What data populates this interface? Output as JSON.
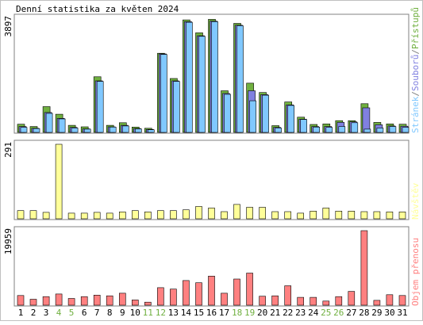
{
  "chart_data": [
    {
      "type": "bar",
      "title": "Denní statistika za květen 2024",
      "ymax_label": "3897",
      "ylim": [
        0,
        3897
      ],
      "legend": [
        "Přístupů",
        "Souborů",
        "Stránek"
      ],
      "legend_separator": "/",
      "legend_placement": "right (vertical)",
      "categories": [
        "1",
        "2",
        "3",
        "4",
        "5",
        "6",
        "7",
        "8",
        "9",
        "10",
        "11",
        "12",
        "13",
        "14",
        "15",
        "16",
        "17",
        "18",
        "19",
        "20",
        "21",
        "22",
        "23",
        "24",
        "25",
        "26",
        "27",
        "28",
        "29",
        "30",
        "31"
      ],
      "series": [
        {
          "name": "Přístupů",
          "color": "#70b040",
          "values": [
            280,
            200,
            880,
            620,
            240,
            190,
            1900,
            240,
            330,
            180,
            140,
            2700,
            1840,
            3840,
            3400,
            3860,
            1420,
            3720,
            1680,
            1360,
            230,
            1040,
            520,
            270,
            290,
            400,
            400,
            980,
            340,
            290,
            280
          ]
        },
        {
          "name": "Souborů",
          "color": "#8080e0",
          "values": [
            200,
            140,
            680,
            480,
            170,
            120,
            1760,
            190,
            240,
            130,
            100,
            2680,
            1760,
            3780,
            3300,
            3800,
            1330,
            3660,
            1420,
            1290,
            170,
            940,
            450,
            200,
            200,
            340,
            360,
            840,
            260,
            220,
            210
          ]
        },
        {
          "name": "Stránek",
          "color": "#80c8ff",
          "values": [
            170,
            130,
            650,
            460,
            150,
            110,
            1740,
            180,
            220,
            120,
            90,
            2660,
            1740,
            3760,
            3280,
            3780,
            1300,
            3640,
            1080,
            1270,
            150,
            920,
            440,
            180,
            170,
            200,
            330,
            110,
            150,
            200,
            170
          ]
        }
      ]
    },
    {
      "type": "bar",
      "ymax_label": "291",
      "ylim": [
        0,
        291
      ],
      "legend": [
        "Návštěv"
      ],
      "categories": [
        "1",
        "2",
        "3",
        "4",
        "5",
        "6",
        "7",
        "8",
        "9",
        "10",
        "11",
        "12",
        "13",
        "14",
        "15",
        "16",
        "17",
        "18",
        "19",
        "20",
        "21",
        "22",
        "23",
        "24",
        "25",
        "26",
        "27",
        "28",
        "29",
        "30",
        "31"
      ],
      "series": [
        {
          "name": "Návštěv",
          "color": "#ffff99",
          "values": [
            32,
            32,
            25,
            291,
            22,
            22,
            25,
            22,
            27,
            32,
            27,
            32,
            32,
            35,
            48,
            42,
            28,
            56,
            45,
            45,
            28,
            28,
            22,
            30,
            42,
            30,
            30,
            28,
            28,
            27,
            27
          ]
        }
      ]
    },
    {
      "type": "bar",
      "ymax_label": "19959",
      "ylim": [
        0,
        19959
      ],
      "legend": [
        "Objem přenosu"
      ],
      "categories": [
        "1",
        "2",
        "3",
        "4",
        "5",
        "6",
        "7",
        "8",
        "9",
        "10",
        "11",
        "12",
        "13",
        "14",
        "15",
        "16",
        "17",
        "18",
        "19",
        "20",
        "21",
        "22",
        "23",
        "24",
        "25",
        "26",
        "27",
        "28",
        "29",
        "30",
        "31"
      ],
      "series": [
        {
          "name": "Objem přenosu",
          "color": "#ff8080",
          "values": [
            2600,
            1600,
            2300,
            3000,
            1800,
            2300,
            2700,
            2500,
            3200,
            1400,
            800,
            4700,
            4300,
            6600,
            6000,
            7800,
            3200,
            7000,
            8600,
            2400,
            2500,
            5200,
            2100,
            2100,
            1100,
            2300,
            3700,
            19959,
            1300,
            2800,
            2600
          ]
        }
      ]
    }
  ],
  "weekend_days": [
    "4",
    "5",
    "11",
    "12",
    "18",
    "19",
    "25",
    "26"
  ],
  "colors": {
    "frame": "#808080",
    "weekend_label": "#70b040",
    "weekday_label": "#000000",
    "bar_outline": "#000000",
    "border": "#c0c0c0"
  }
}
